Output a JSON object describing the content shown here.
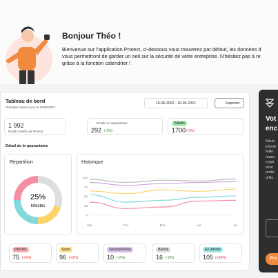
{
  "header": {
    "greeting": "Bonjour Théo !",
    "lines": [
      "Bienvenue sur l'application Protect, ci-dessous vous trouverez par défaut, les données d",
      "vous permettront de garder un oeil sur la sécurité de votre entreprise. N'hésitez pas à re",
      "grâce à la fonction calendrier !"
    ]
  },
  "dashboard": {
    "title": "Tableau de bord",
    "updated": "Données mises à jour le 16/06/2022",
    "date_range": "16-06-2022 - 16-06-2022",
    "export": "Exporter",
    "stats": [
      {
        "value": "1 992",
        "label": "Emails traités par Protect."
      },
      {
        "label": "Emails en quarantaine",
        "value": "292",
        "change": "(-2%)"
      },
      {
        "label": "Validés",
        "value": "1700",
        "change": "(-5%)"
      }
    ],
    "section": "Détail de la quarantaine",
    "donut": {
      "title": "Répartition",
      "center": "25%",
      "center_label": "Infectés",
      "values": [
        30,
        20,
        25,
        25
      ],
      "colors": [
        "#dedede",
        "#fcd46a",
        "#82d9dc",
        "#f48ea3"
      ]
    },
    "chart_data": {
      "type": "line",
      "title": "Historique",
      "categories": [
        "Jan.",
        "Fév.",
        "Mar.",
        "Avr.",
        "Jui."
      ],
      "ylim": [
        0,
        100
      ],
      "yticks": [
        0,
        25,
        50,
        75,
        100
      ],
      "grid": true,
      "series": [
        {
          "color": "#bdbdbd",
          "values": [
            96,
            88,
            94,
            92,
            97
          ]
        },
        {
          "color": "#c9a9d9",
          "values": [
            88,
            80,
            85,
            88,
            90
          ]
        },
        {
          "color": "#fcd46a",
          "values": [
            65,
            58,
            68,
            64,
            70
          ]
        },
        {
          "color": "#82d9dc",
          "values": [
            55,
            35,
            40,
            48,
            52
          ]
        },
        {
          "color": "#f48ea3",
          "values": [
            35,
            18,
            22,
            38,
            40
          ]
        }
      ]
    },
    "counters": [
      {
        "label": "Infectés",
        "value": "75",
        "change": "(+5%)",
        "color": "#f8b4b4"
      },
      {
        "label": "Spam",
        "value": "96",
        "change": "(+2%)",
        "color": "#fde08a"
      },
      {
        "label": "Spearphishing",
        "value": "10",
        "change": "(-2%)",
        "color": "#d9c2e8"
      },
      {
        "label": "Bannis",
        "value": "16",
        "change": "(-2%)",
        "color": "#dcdcdc"
      },
      {
        "label": "En attente",
        "value": "105",
        "change": "(+20%)",
        "color": "#9fe3e3"
      }
    ]
  },
  "side": {
    "title": [
      "Vot",
      "enc"
    ],
    "lines": [
      "Nous",
      "inform",
      "faille",
      "mauv",
      "crypt",
      "séré",
      "proté",
      "utilis"
    ],
    "button": "Pro"
  }
}
